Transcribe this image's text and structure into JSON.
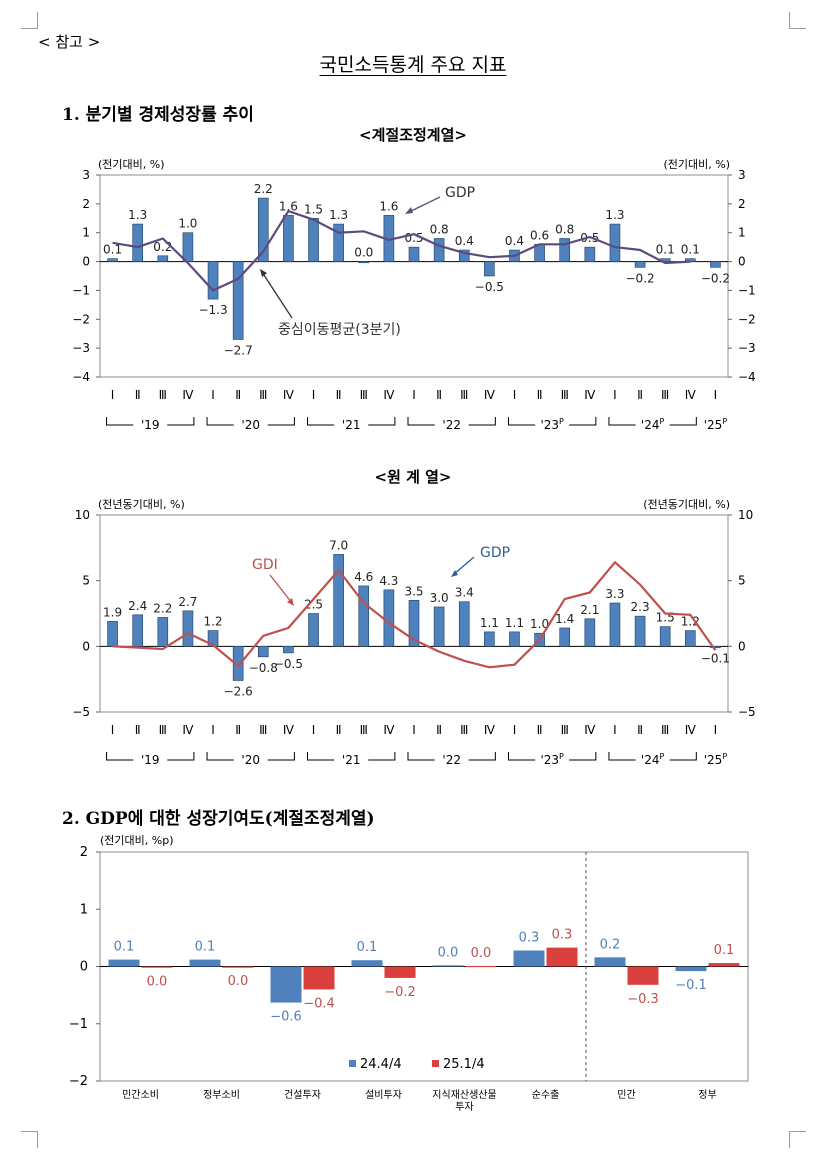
{
  "header": {
    "note": "< 참고 >",
    "title": "국민소득통계 주요 지표",
    "section1": "1. 분기별 경제성장률 추이",
    "section2": "2. GDP에 대한 성장기여도(계절조정계열)"
  },
  "chart_data": [
    {
      "type": "bar",
      "title": "<계절조정계열>",
      "ylabel": "(전기대비, %)",
      "ylabel_right": "(전기대비, %)",
      "ylim": [
        -4,
        3
      ],
      "yticks": [
        3,
        2,
        1,
        0,
        -1,
        -2,
        -3,
        -4
      ],
      "quarter_labels": [
        "Ⅰ",
        "Ⅱ",
        "Ⅲ",
        "Ⅳ",
        "Ⅰ",
        "Ⅱ",
        "Ⅲ",
        "Ⅳ",
        "Ⅰ",
        "Ⅱ",
        "Ⅲ",
        "Ⅳ",
        "Ⅰ",
        "Ⅱ",
        "Ⅲ",
        "Ⅳ",
        "Ⅰ",
        "Ⅱ",
        "Ⅲ",
        "Ⅳ",
        "Ⅰ",
        "Ⅱ",
        "Ⅲ",
        "Ⅳ",
        "Ⅰ"
      ],
      "year_groups": [
        {
          "label": "'19",
          "sup": "",
          "start": 0,
          "end": 3
        },
        {
          "label": "'20",
          "sup": "",
          "start": 4,
          "end": 7
        },
        {
          "label": "'21",
          "sup": "",
          "start": 8,
          "end": 11
        },
        {
          "label": "'22",
          "sup": "",
          "start": 12,
          "end": 15
        },
        {
          "label": "'23",
          "sup": "P",
          "start": 16,
          "end": 19
        },
        {
          "label": "'24",
          "sup": "P",
          "start": 20,
          "end": 23
        },
        {
          "label": "'25",
          "sup": "P",
          "start": 24,
          "end": 24
        }
      ],
      "series": [
        {
          "name": "GDP",
          "kind": "bar",
          "color": "#4f81bd",
          "values": [
            0.1,
            1.3,
            0.2,
            1.0,
            -1.3,
            -2.7,
            2.2,
            1.6,
            1.5,
            1.3,
            0.0,
            1.6,
            0.5,
            0.8,
            0.4,
            -0.5,
            0.4,
            0.6,
            0.8,
            0.5,
            1.3,
            -0.2,
            0.1,
            0.1,
            -0.2
          ],
          "labels": [
            "0.1",
            "1.3",
            "0.2",
            "1.0",
            "−1.3",
            "−2.7",
            "2.2",
            "1.6",
            "1.5",
            "1.3",
            "0.0",
            "1.6",
            "0.5",
            "0.8",
            "0.4",
            "−0.5",
            "0.4",
            "0.6",
            "0.8",
            "0.5",
            "1.3",
            "−0.2",
            "0.1",
            "0.1",
            "−0.2"
          ]
        },
        {
          "name": "중심이동평균(3분기)",
          "kind": "line",
          "color": "#5e4a7e",
          "values": [
            0.65,
            0.5,
            0.8,
            -0.05,
            -1.0,
            -0.6,
            0.35,
            1.75,
            1.45,
            1.0,
            1.05,
            0.75,
            0.95,
            0.55,
            0.3,
            0.15,
            0.2,
            0.6,
            0.6,
            0.85,
            0.5,
            0.4,
            -0.05,
            0.0,
            null
          ]
        }
      ],
      "annotations": [
        {
          "text": "GDP"
        },
        {
          "text": "중심이동평균(3분기)"
        }
      ]
    },
    {
      "type": "bar",
      "title": "<원 계 열>",
      "ylabel": "(전년동기대비, %)",
      "ylabel_right": "(전년동기대비, %)",
      "ylim": [
        -5,
        10
      ],
      "yticks": [
        10,
        5,
        0,
        -5
      ],
      "quarter_labels": [
        "Ⅰ",
        "Ⅱ",
        "Ⅲ",
        "Ⅳ",
        "Ⅰ",
        "Ⅱ",
        "Ⅲ",
        "Ⅳ",
        "Ⅰ",
        "Ⅱ",
        "Ⅲ",
        "Ⅳ",
        "Ⅰ",
        "Ⅱ",
        "Ⅲ",
        "Ⅳ",
        "Ⅰ",
        "Ⅱ",
        "Ⅲ",
        "Ⅳ",
        "Ⅰ",
        "Ⅱ",
        "Ⅲ",
        "Ⅳ",
        "Ⅰ"
      ],
      "year_groups": [
        {
          "label": "'19",
          "sup": "",
          "start": 0,
          "end": 3
        },
        {
          "label": "'20",
          "sup": "",
          "start": 4,
          "end": 7
        },
        {
          "label": "'21",
          "sup": "",
          "start": 8,
          "end": 11
        },
        {
          "label": "'22",
          "sup": "",
          "start": 12,
          "end": 15
        },
        {
          "label": "'23",
          "sup": "P",
          "start": 16,
          "end": 19
        },
        {
          "label": "'24",
          "sup": "P",
          "start": 20,
          "end": 23
        },
        {
          "label": "'25",
          "sup": "P",
          "start": 24,
          "end": 24
        }
      ],
      "series": [
        {
          "name": "GDP",
          "kind": "bar",
          "color": "#4f81bd",
          "values": [
            1.9,
            2.4,
            2.2,
            2.7,
            1.2,
            -2.6,
            -0.8,
            -0.5,
            2.5,
            7.0,
            4.6,
            4.3,
            3.5,
            3.0,
            3.4,
            1.1,
            1.1,
            1.0,
            1.4,
            2.1,
            3.3,
            2.3,
            1.5,
            1.2,
            -0.1
          ],
          "labels": [
            "1.9",
            "2.4",
            "2.2",
            "2.7",
            "1.2",
            "−2.6",
            "−0.8",
            "−0.5",
            "2.5",
            "7.0",
            "4.6",
            "4.3",
            "3.5",
            "3.0",
            "3.4",
            "1.1",
            "1.1",
            "1.0",
            "1.4",
            "2.1",
            "3.3",
            "2.3",
            "1.5",
            "1.2",
            "−0.1"
          ]
        },
        {
          "name": "GDI",
          "kind": "line",
          "color": "#c0504d",
          "values": [
            0.0,
            -0.1,
            -0.2,
            1.0,
            0.1,
            -1.5,
            0.8,
            1.4,
            3.6,
            5.8,
            3.3,
            1.8,
            0.5,
            -0.4,
            -1.1,
            -1.6,
            -1.4,
            0.5,
            3.6,
            4.1,
            6.4,
            4.7,
            2.5,
            2.4,
            -0.3
          ]
        }
      ],
      "annotations": [
        {
          "text": "GDP"
        },
        {
          "text": "GDI"
        }
      ]
    },
    {
      "type": "bar",
      "ylabel": "(전기대비, %p)",
      "ylim": [
        -2,
        2
      ],
      "yticks": [
        2,
        1,
        0,
        -1,
        -2
      ],
      "categories": [
        "민간소비",
        "정부소비",
        "건설투자",
        "설비투자",
        "지식재산생산물|투자",
        "순수출",
        "민간",
        "정부"
      ],
      "series": [
        {
          "name": "24.4/4",
          "color": "#4f81bd",
          "label_color": "#4f81bd",
          "values": [
            0.12,
            0.12,
            -0.63,
            0.11,
            0.02,
            0.28,
            0.16,
            -0.08
          ],
          "labels": [
            "0.1",
            "0.1",
            "−0.6",
            "0.1",
            "0.0",
            "0.3",
            "0.2",
            "−0.1"
          ]
        },
        {
          "name": "25.1/4",
          "color": "#d9403e",
          "label_color": "#c0504d",
          "values": [
            -0.02,
            -0.01,
            -0.4,
            -0.2,
            0.01,
            0.33,
            -0.32,
            0.06
          ],
          "labels": [
            "0.0",
            "0.0",
            "−0.4",
            "−0.2",
            "0.0",
            "0.3",
            "−0.3",
            "0.1"
          ]
        }
      ]
    }
  ]
}
